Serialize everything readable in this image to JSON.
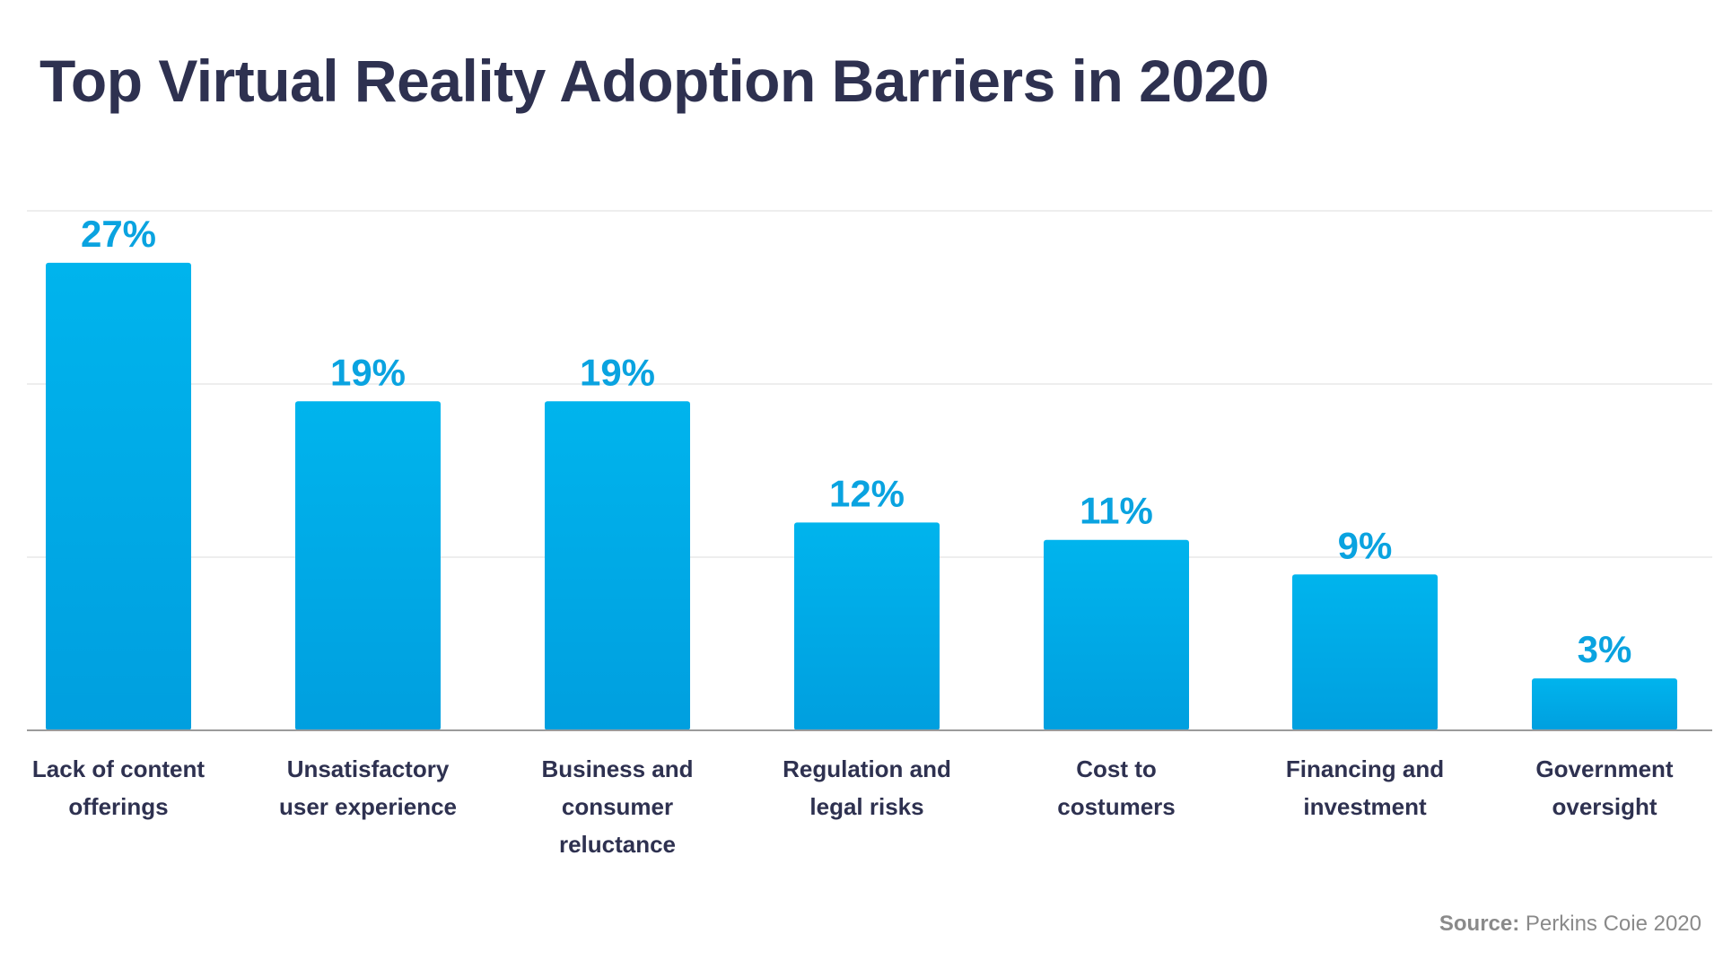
{
  "chart_data": {
    "type": "bar",
    "title": "Top Virtual Reality Adoption Barriers in 2020",
    "categories": [
      [
        "Lack of content",
        "offerings"
      ],
      [
        "Unsatisfactory",
        "user experience"
      ],
      [
        "Business and",
        "consumer",
        "reluctance"
      ],
      [
        "Regulation and",
        "legal risks"
      ],
      [
        "Cost to",
        "costumers"
      ],
      [
        "Financing and",
        "investment"
      ],
      [
        "Government",
        "oversight"
      ]
    ],
    "values": [
      27,
      19,
      19,
      12,
      11,
      9,
      3
    ],
    "value_labels": [
      "27%",
      "19%",
      "19%",
      "12%",
      "11%",
      "9%",
      "3%"
    ],
    "ylim": [
      0,
      30
    ],
    "gridlines": [
      10,
      20,
      30
    ],
    "xlabel": "",
    "ylabel": "",
    "grid": true,
    "colors": {
      "bar_top": "#00b4ed",
      "bar_bottom": "#009fdf",
      "value_label": "#0aa3e0",
      "category_label": "#2e3150",
      "gridline": "#e8e8e8",
      "axis": "#9b9b9b"
    }
  },
  "source": {
    "label": "Source:",
    "text": " Perkins Coie 2020"
  }
}
